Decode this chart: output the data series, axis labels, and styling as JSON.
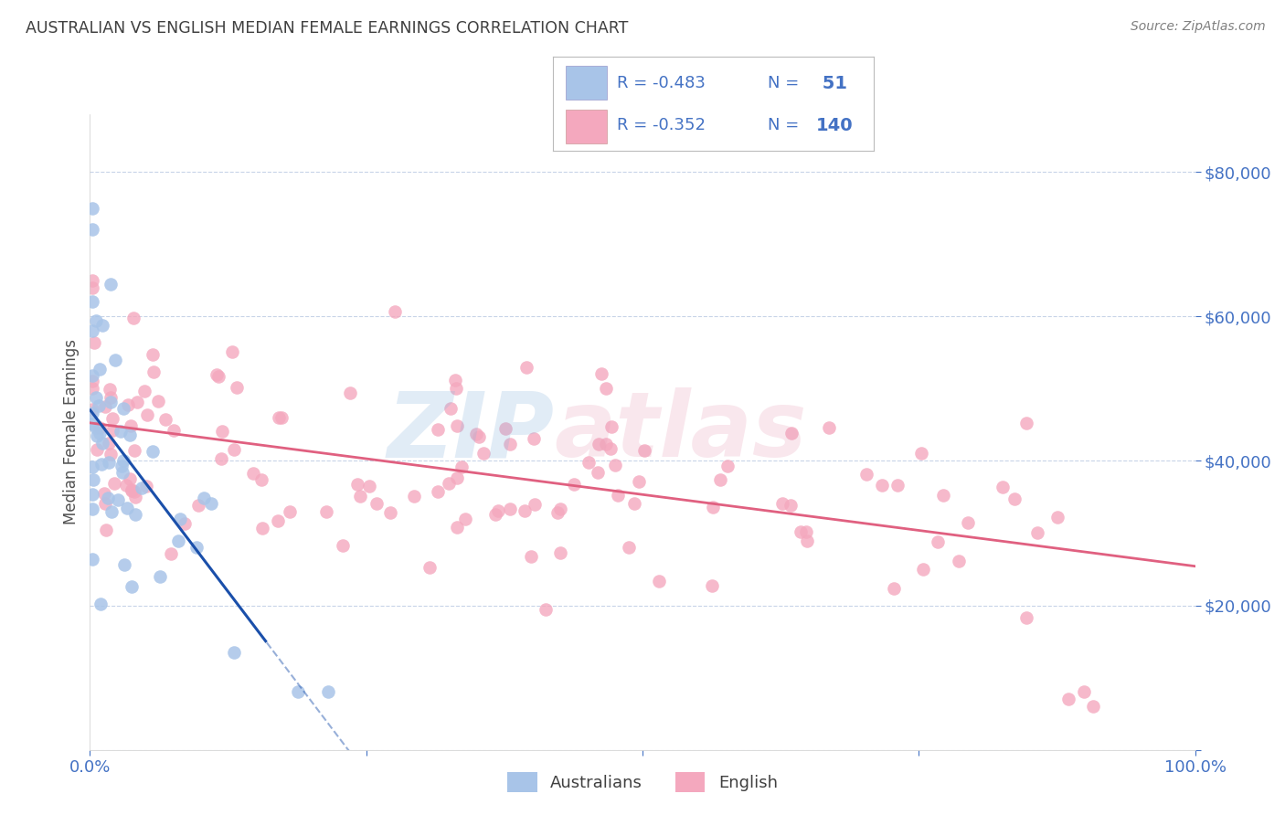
{
  "title": "AUSTRALIAN VS ENGLISH MEDIAN FEMALE EARNINGS CORRELATION CHART",
  "source": "Source: ZipAtlas.com",
  "ylabel": "Median Female Earnings",
  "xlim": [
    0.0,
    100.0
  ],
  "ylim": [
    0,
    88000
  ],
  "legend_R_aus": "-0.483",
  "legend_N_aus": "51",
  "legend_R_eng": "-0.352",
  "legend_N_eng": "140",
  "aus_color": "#a8c4e8",
  "eng_color": "#f4a8be",
  "aus_line_color": "#1a4faa",
  "eng_line_color": "#e06080",
  "background_color": "#ffffff",
  "grid_color": "#c8d4e8",
  "title_color": "#404040",
  "source_color": "#808080",
  "axis_label_color": "#505050",
  "tick_color": "#4472c4",
  "legend_text_color": "#4472c4",
  "legend_R_color": "#4472c4",
  "watermark_blue": "#8ab4dc",
  "watermark_pink": "#e8a0b8"
}
